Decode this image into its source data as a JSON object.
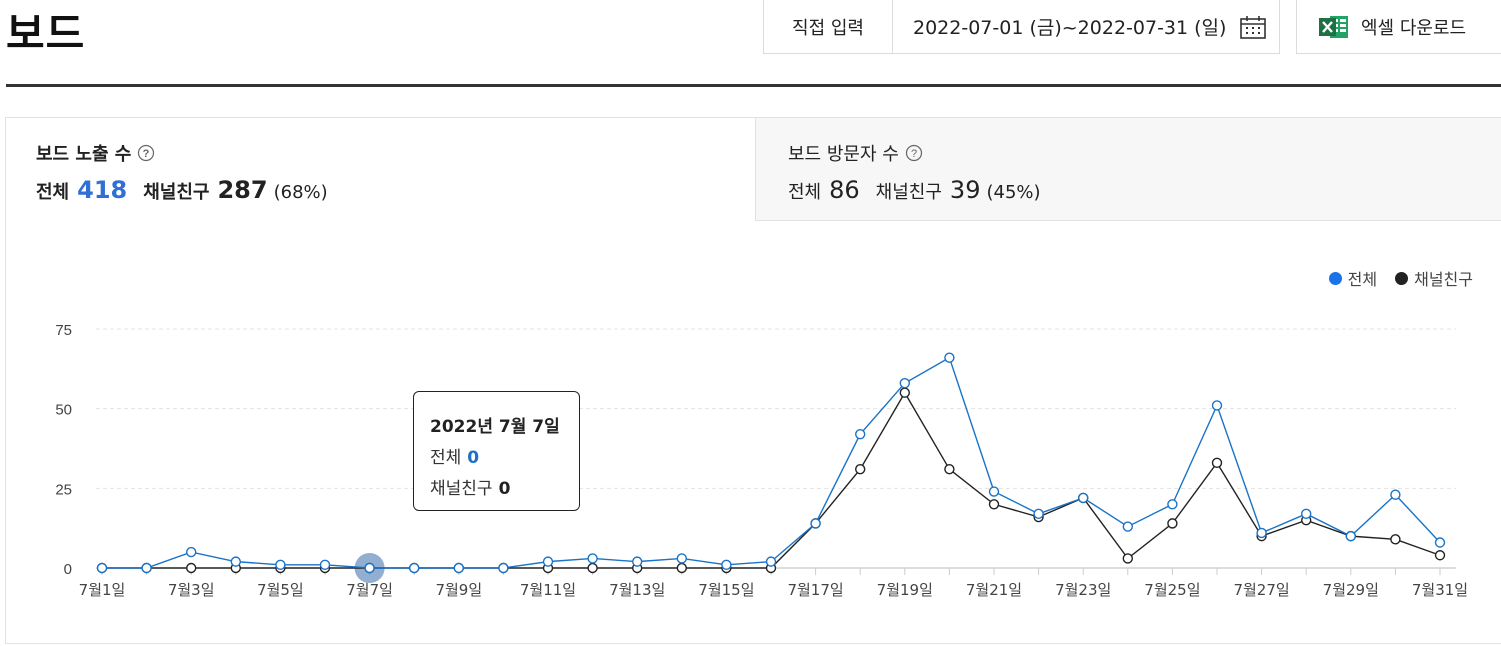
{
  "header": {
    "title": "보드",
    "direct_input_label": "직접 입력",
    "date_range": "2022-07-01 (금)~2022-07-31 (일)",
    "excel_label": "엑셀 다운로드"
  },
  "metrics": {
    "exposure": {
      "title": "보드 노출 수",
      "total_label": "전체",
      "total_value": "418",
      "friends_label": "채널친구",
      "friends_value": "287",
      "friends_pct": "(68%)"
    },
    "visitors": {
      "title": "보드 방문자 수",
      "total_label": "전체",
      "total_value": "86",
      "friends_label": "채널친구",
      "friends_value": "39",
      "friends_pct": "(45%)"
    }
  },
  "legend": {
    "total": "전체",
    "friends": "채널친구"
  },
  "tooltip": {
    "date": "2022년 7월 7일",
    "total_label": "전체",
    "total_value": "0",
    "friends_label": "채널친구",
    "friends_value": "0"
  },
  "colors": {
    "total": "#1a73c8",
    "friends": "#222222",
    "accent": "#2f6fd6",
    "excel": "#1e7145"
  },
  "chart_data": {
    "type": "line",
    "x": [
      "7월1일",
      "7월2일",
      "7월3일",
      "7월4일",
      "7월5일",
      "7월6일",
      "7월7일",
      "7월8일",
      "7월9일",
      "7월10일",
      "7월11일",
      "7월12일",
      "7월13일",
      "7월14일",
      "7월15일",
      "7월16일",
      "7월17일",
      "7월18일",
      "7월19일",
      "7월20일",
      "7월21일",
      "7월22일",
      "7월23일",
      "7월24일",
      "7월25일",
      "7월26일",
      "7월27일",
      "7월28일",
      "7월29일",
      "7월30일",
      "7월31일"
    ],
    "tick_labels": [
      "7월1일",
      "7월3일",
      "7월5일",
      "7월7일",
      "7월9일",
      "7월11일",
      "7월13일",
      "7월15일",
      "7월17일",
      "7월19일",
      "7월21일",
      "7월23일",
      "7월25일",
      "7월27일",
      "7월29일",
      "7월31일"
    ],
    "series": [
      {
        "name": "전체",
        "values": [
          0,
          0,
          5,
          2,
          1,
          1,
          0,
          0,
          0,
          0,
          2,
          3,
          2,
          3,
          1,
          2,
          14,
          42,
          58,
          66,
          24,
          17,
          22,
          13,
          20,
          51,
          11,
          17,
          10,
          23,
          8
        ]
      },
      {
        "name": "채널친구",
        "values": [
          0,
          0,
          0,
          0,
          0,
          0,
          0,
          0,
          0,
          0,
          0,
          0,
          0,
          0,
          0,
          0,
          14,
          31,
          55,
          31,
          20,
          16,
          22,
          3,
          14,
          33,
          10,
          15,
          10,
          9,
          4
        ]
      }
    ],
    "ylim": [
      0,
      75
    ],
    "yticks": [
      0,
      25,
      50,
      75
    ],
    "xlabel": "",
    "ylabel": "",
    "grid": true,
    "legend_position": "top-right",
    "highlighted_point": "7월7일"
  }
}
